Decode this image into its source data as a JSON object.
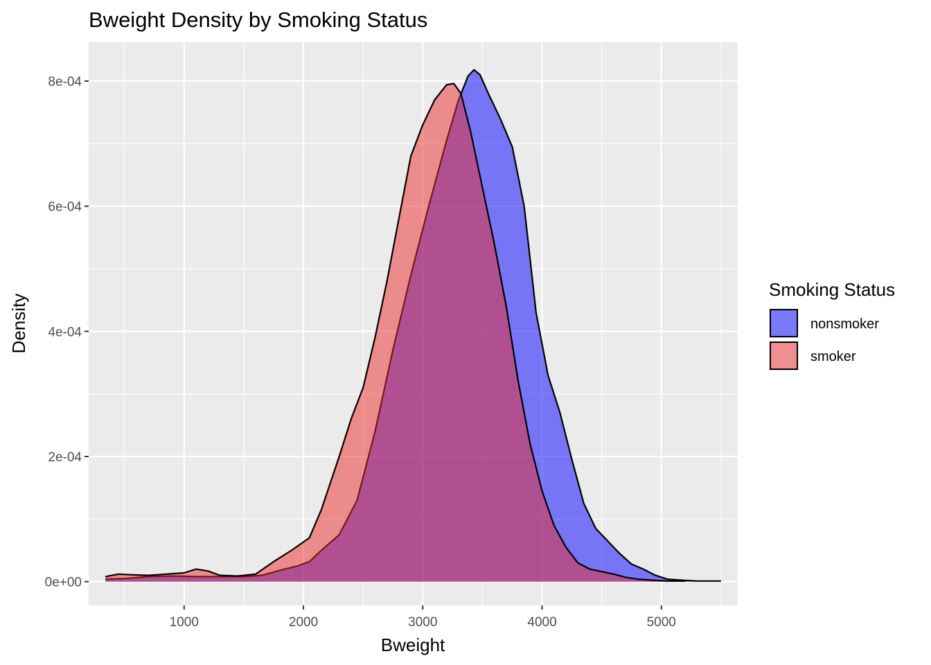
{
  "chart_data": {
    "type": "area",
    "title": "Bweight Density by Smoking Status",
    "xlabel": "Bweight",
    "ylabel": "Density",
    "xlim": [
      200,
      5640
    ],
    "ylim": [
      -3.8e-05,
      0.000862
    ],
    "x_ticks": [
      1000,
      2000,
      3000,
      4000,
      5000
    ],
    "x_tick_labels": [
      "1000",
      "2000",
      "3000",
      "4000",
      "5000"
    ],
    "y_ticks": [
      0,
      0.0002,
      0.0004,
      0.0006,
      0.0008
    ],
    "y_tick_labels": [
      "0e+00",
      "2e-04",
      "4e-04",
      "6e-04",
      "8e-04"
    ],
    "grid": true,
    "legend": {
      "title": "Smoking Status",
      "placement": "right",
      "entries": [
        "nonsmoker",
        "smoker"
      ]
    },
    "series": [
      {
        "name": "nonsmoker",
        "color": "#0000FF",
        "points": [
          [
            340,
            4e-06
          ],
          [
            500,
            5e-06
          ],
          [
            700,
            8e-06
          ],
          [
            900,
            9e-06
          ],
          [
            1100,
            8e-06
          ],
          [
            1300,
            8e-06
          ],
          [
            1500,
            8e-06
          ],
          [
            1650,
            1e-05
          ],
          [
            1800,
            1.8e-05
          ],
          [
            1950,
            2.5e-05
          ],
          [
            2050,
            3.2e-05
          ],
          [
            2150,
            5e-05
          ],
          [
            2300,
            7.5e-05
          ],
          [
            2450,
            0.00013
          ],
          [
            2600,
            0.00024
          ],
          [
            2750,
            0.00037
          ],
          [
            2900,
            0.00049
          ],
          [
            3050,
            0.0006
          ],
          [
            3200,
            0.000705
          ],
          [
            3300,
            0.00077
          ],
          [
            3380,
            0.000808
          ],
          [
            3430,
            0.000818
          ],
          [
            3480,
            0.00081
          ],
          [
            3550,
            0.00078
          ],
          [
            3650,
            0.00074
          ],
          [
            3750,
            0.000695
          ],
          [
            3850,
            0.0006
          ],
          [
            3950,
            0.00043
          ],
          [
            4050,
            0.00033
          ],
          [
            4150,
            0.00027
          ],
          [
            4250,
            0.000195
          ],
          [
            4350,
            0.000125
          ],
          [
            4450,
            8.5e-05
          ],
          [
            4550,
            6.5e-05
          ],
          [
            4650,
            4.5e-05
          ],
          [
            4750,
            2.8e-05
          ],
          [
            4850,
            2e-05
          ],
          [
            4950,
            1e-05
          ],
          [
            5050,
            4e-06
          ],
          [
            5200,
            2e-06
          ],
          [
            5300,
            1e-06
          ],
          [
            5500,
            1e-06
          ]
        ]
      },
      {
        "name": "smoker",
        "color": "#EE2C2C",
        "points": [
          [
            340,
            8e-06
          ],
          [
            450,
            1.2e-05
          ],
          [
            550,
            1.1e-05
          ],
          [
            700,
            1e-05
          ],
          [
            850,
            1.2e-05
          ],
          [
            1000,
            1.4e-05
          ],
          [
            1100,
            2e-05
          ],
          [
            1200,
            1.7e-05
          ],
          [
            1300,
            1e-05
          ],
          [
            1450,
            9e-06
          ],
          [
            1600,
            1.2e-05
          ],
          [
            1750,
            3.2e-05
          ],
          [
            1900,
            5e-05
          ],
          [
            2050,
            7e-05
          ],
          [
            2150,
            0.000115
          ],
          [
            2300,
            0.0002
          ],
          [
            2400,
            0.00026
          ],
          [
            2500,
            0.00031
          ],
          [
            2600,
            0.00039
          ],
          [
            2700,
            0.00048
          ],
          [
            2800,
            0.00058
          ],
          [
            2900,
            0.00068
          ],
          [
            3000,
            0.00073
          ],
          [
            3100,
            0.00077
          ],
          [
            3200,
            0.000794
          ],
          [
            3260,
            0.000796
          ],
          [
            3320,
            0.00078
          ],
          [
            3400,
            0.00072
          ],
          [
            3500,
            0.00063
          ],
          [
            3600,
            0.00054
          ],
          [
            3700,
            0.00044
          ],
          [
            3800,
            0.00032
          ],
          [
            3900,
            0.00022
          ],
          [
            4000,
            0.000145
          ],
          [
            4100,
            9e-05
          ],
          [
            4200,
            5.5e-05
          ],
          [
            4300,
            3e-05
          ],
          [
            4400,
            2e-05
          ],
          [
            4500,
            1.6e-05
          ],
          [
            4600,
            1.2e-05
          ],
          [
            4700,
            7e-06
          ],
          [
            4800,
            4e-06
          ],
          [
            4950,
            2e-06
          ],
          [
            5050,
            1e-06
          ],
          [
            5200,
            1e-06
          ]
        ]
      }
    ]
  }
}
